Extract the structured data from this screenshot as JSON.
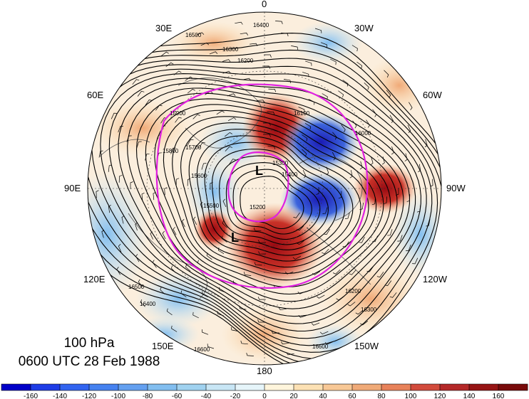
{
  "map": {
    "level": "100 hPa",
    "datetime": "0600 UTC 28 Feb 1988",
    "longitude_labels": {
      "top": "0",
      "top_right": "30W",
      "right_upper": "60W",
      "right": "90W",
      "right_lower": "120W",
      "bottom_right": "150W",
      "bottom": "180",
      "bottom_left": "150E",
      "left_lower": "120E",
      "left": "90E",
      "left_upper": "60E",
      "top_left": "30E"
    },
    "contour_labels": [
      "16400",
      "16300",
      "16200",
      "16500",
      "16100",
      "16000",
      "15900",
      "15800",
      "15700",
      "15600",
      "15500",
      "15400",
      "15300",
      "15200",
      "16600",
      "16200",
      "16300",
      "16400",
      "16500",
      "16600"
    ],
    "low_centers": [
      "L",
      "L"
    ],
    "colors": {
      "contour": "#000000",
      "highlight_contour": "#e020e0",
      "strong_negative": "#1a1ab4",
      "strong_positive": "#a50f15"
    }
  },
  "colorbar": {
    "ticks": [
      "-160",
      "-140",
      "-120",
      "-100",
      "-80",
      "-60",
      "-40",
      "-20",
      "0",
      "20",
      "40",
      "60",
      "80",
      "100",
      "120",
      "140",
      "160"
    ],
    "colors": [
      "#0000c8",
      "#1e3ce6",
      "#3264f0",
      "#4682f0",
      "#64a0f0",
      "#82bef0",
      "#a0d2f0",
      "#c8e6f5",
      "#e6f5fa",
      "#fff5dc",
      "#fce1b4",
      "#f8c896",
      "#f0aa78",
      "#e8825a",
      "#d24b3c",
      "#b42828",
      "#961414",
      "#780a0a"
    ]
  }
}
